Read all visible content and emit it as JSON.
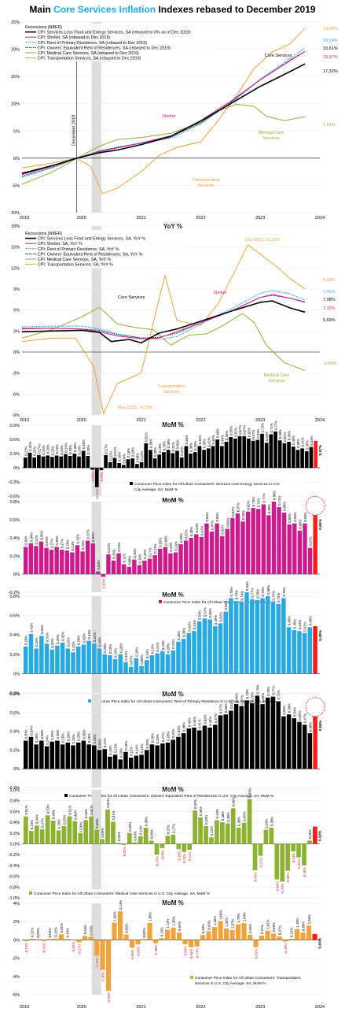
{
  "title": {
    "pre": "Main ",
    "highlight": "Core Services Inflation",
    "post": " Indexes rebased to December 2019"
  },
  "colors": {
    "core": "#000000",
    "shelter": "#cc1b8e",
    "rent": "#29a9e1",
    "oer": "#1f2a44",
    "medical": "#8db132",
    "transport": "#f0a23b",
    "last_bar": "#ff1a1a",
    "recession": "#dddddd",
    "neg_label": "#d11f1f"
  },
  "x_axis": {
    "years": [
      "2019",
      "2020",
      "2021",
      "2022",
      "2023",
      "2024"
    ]
  },
  "chart_data": [
    {
      "type": "line",
      "title": "",
      "ylabel": "",
      "ylim": [
        -10,
        25
      ],
      "yticks": [
        "25%",
        "20%",
        "15%",
        "10%",
        "5%",
        "0%",
        "-5%",
        "-10%"
      ],
      "annotation_vline": "December 2019",
      "legend": [
        "Recessions (NBER)",
        "CPI: Services Less Food and Energy Services, SA (rebased to 0% as of Dec 2019)",
        "CPI: Shelter, SA (rebased to Dec 2019)",
        "CPI: Rent of Primary Residence, SA (rebased to Dec 2019)",
        "CPI: Owners' Equivalent Rent of Residences, SA (rebased to Dec 2019)",
        "CPI: Medical Care Services, SA (rebased to Dec 2019)",
        "CPI: Transportation Services, SA (rebased to Dec 2019)"
      ],
      "end_labels": [
        "23,88%",
        "20,24%",
        "19,61%",
        "19,57%",
        "17,32%",
        "7,61%"
      ],
      "series_labels": [
        "Core Services",
        "Shelter",
        "Medical Care Services",
        "Transportation Services"
      ],
      "series": [
        {
          "key": "core",
          "x": [
            2019.0,
            2019.5,
            2019.92,
            2020.3,
            2020.6,
            2021.0,
            2021.5,
            2022.0,
            2022.5,
            2023.0,
            2023.5,
            2023.75
          ],
          "values": [
            -2.8,
            -1.4,
            0,
            1.0,
            1.5,
            2.5,
            4.0,
            6.8,
            10.0,
            13.2,
            15.9,
            17.32
          ]
        },
        {
          "key": "shelter",
          "x": [
            2019.0,
            2019.5,
            2019.92,
            2020.3,
            2020.6,
            2021.0,
            2021.5,
            2022.0,
            2022.5,
            2023.0,
            2023.5,
            2023.75
          ],
          "values": [
            -3.0,
            -1.5,
            0,
            1.2,
            1.9,
            2.8,
            4.1,
            6.9,
            10.4,
            14.4,
            17.9,
            19.57
          ]
        },
        {
          "key": "rent",
          "x": [
            2019.0,
            2019.5,
            2019.92,
            2020.3,
            2020.6,
            2021.0,
            2021.5,
            2022.0,
            2022.5,
            2023.0,
            2023.5,
            2023.75
          ],
          "values": [
            -3.5,
            -1.8,
            0,
            1.3,
            2.0,
            2.7,
            3.7,
            6.3,
            10.1,
            14.5,
            18.3,
            20.24
          ]
        },
        {
          "key": "oer",
          "x": [
            2019.0,
            2019.5,
            2019.92,
            2020.3,
            2020.6,
            2021.0,
            2021.5,
            2022.0,
            2022.5,
            2023.0,
            2023.5,
            2023.75
          ],
          "values": [
            -3.3,
            -1.7,
            0,
            1.3,
            2.0,
            2.8,
            3.9,
            6.5,
            10.2,
            14.4,
            18.0,
            19.61
          ]
        },
        {
          "key": "medical",
          "x": [
            2019.0,
            2019.5,
            2019.92,
            2020.3,
            2020.6,
            2021.0,
            2021.5,
            2022.0,
            2022.3,
            2022.6,
            2022.9,
            2023.1,
            2023.4,
            2023.75
          ],
          "values": [
            -4.8,
            -2.6,
            0,
            2.2,
            3.4,
            3.8,
            4.6,
            6.5,
            8.7,
            9.9,
            9.5,
            7.7,
            6.9,
            7.61
          ]
        },
        {
          "key": "transport",
          "x": [
            2019.0,
            2019.5,
            2019.92,
            2020.15,
            2020.35,
            2020.6,
            2021.0,
            2021.3,
            2021.6,
            2022.0,
            2022.3,
            2022.6,
            2022.9,
            2023.2,
            2023.5,
            2023.75
          ],
          "values": [
            -1.8,
            -0.9,
            0,
            -1.5,
            -6.5,
            -5.5,
            -2.5,
            0.5,
            2.0,
            3.0,
            7.0,
            11.5,
            16.5,
            19.5,
            21.0,
            23.88
          ]
        }
      ]
    },
    {
      "type": "line",
      "title": "YoY %",
      "ylim": [
        -9,
        18
      ],
      "yticks": [
        "18%",
        "15%",
        "12%",
        "9%",
        "6%",
        "3%",
        "0%",
        "-3%",
        "-6%",
        "-9%"
      ],
      "legend": [
        "Recessions (NBER)",
        "CPI: Services Less Food and Energy Services, SA, YoY %",
        "CPI: Shelter, SA, YoY %",
        "CPI: Rent of Primary Residence, SA, YoY %",
        "CPI: Owners' Equivalent Rent of Residences, SA, YoY %",
        "CPI: Medical Care Services, SA, YoY %",
        "CPI: Transportation Services, SA, YoY %"
      ],
      "annotations": [
        "Oct-2022, 15,32%",
        "May-2020, -8,76%"
      ],
      "end_labels": [
        "9,03%",
        "7,41%",
        "7,08%",
        "7,15%",
        "5,69%",
        "-2,64%"
      ],
      "series_labels": [
        "Core Services",
        "Shelter",
        "Transportation Services",
        "Medical Care Services"
      ],
      "series": [
        {
          "key": "core",
          "x": [
            2019.0,
            2019.5,
            2020.0,
            2020.3,
            2020.5,
            2020.8,
            2021.0,
            2021.3,
            2021.6,
            2022.0,
            2022.5,
            2023.0,
            2023.2,
            2023.5,
            2023.75
          ],
          "values": [
            2.9,
            3.0,
            3.1,
            2.8,
            1.5,
            1.8,
            1.3,
            2.7,
            3.3,
            4.4,
            5.8,
            7.1,
            7.3,
            6.3,
            5.69
          ]
        },
        {
          "key": "shelter",
          "x": [
            2019.0,
            2019.5,
            2020.0,
            2020.3,
            2020.6,
            2021.0,
            2021.3,
            2021.6,
            2022.0,
            2022.5,
            2023.0,
            2023.2,
            2023.5,
            2023.75
          ],
          "values": [
            3.3,
            3.4,
            3.3,
            2.9,
            2.3,
            1.9,
            2.0,
            2.9,
            4.2,
            5.8,
            7.8,
            8.2,
            7.7,
            7.15
          ]
        },
        {
          "key": "rent",
          "x": [
            2019.0,
            2019.5,
            2020.0,
            2020.3,
            2020.6,
            2021.0,
            2021.3,
            2021.6,
            2022.0,
            2022.5,
            2023.0,
            2023.2,
            2023.5,
            2023.75
          ],
          "values": [
            3.6,
            3.7,
            3.7,
            3.3,
            2.6,
            2.0,
            1.8,
            2.2,
            4.0,
            6.1,
            8.4,
            8.8,
            8.3,
            7.41
          ]
        },
        {
          "key": "oer",
          "x": [
            2019.0,
            2019.5,
            2020.0,
            2020.3,
            2020.6,
            2021.0,
            2021.3,
            2021.6,
            2022.0,
            2022.5,
            2023.0,
            2023.2,
            2023.5,
            2023.75
          ],
          "values": [
            3.4,
            3.4,
            3.3,
            3.1,
            2.5,
            2.0,
            2.1,
            2.7,
            4.2,
            5.8,
            7.8,
            8.1,
            7.7,
            7.08
          ]
        },
        {
          "key": "medical",
          "x": [
            2019.0,
            2019.5,
            2020.0,
            2020.3,
            2020.6,
            2020.9,
            2021.2,
            2021.5,
            2021.8,
            2022.1,
            2022.4,
            2022.7,
            2022.9,
            2023.1,
            2023.4,
            2023.75
          ],
          "values": [
            2.0,
            3.2,
            5.0,
            6.4,
            4.0,
            3.5,
            3.2,
            1.0,
            2.4,
            2.6,
            3.9,
            5.5,
            4.2,
            1.0,
            -1.5,
            -2.64
          ]
        },
        {
          "key": "transport",
          "x": [
            2019.0,
            2019.5,
            2019.9,
            2020.2,
            2020.37,
            2020.6,
            2021.0,
            2021.2,
            2021.4,
            2021.6,
            2022.0,
            2022.3,
            2022.6,
            2022.79,
            2023.0,
            2023.3,
            2023.5,
            2023.75
          ],
          "values": [
            1.5,
            2.0,
            2.0,
            -2.0,
            -8.76,
            -4.5,
            -3.0,
            4.0,
            11.0,
            4.5,
            3.8,
            7.0,
            12.0,
            15.32,
            14.0,
            12.0,
            10.5,
            9.03
          ]
        }
      ]
    },
    {
      "type": "bar",
      "title": "MoM %",
      "ylim": [
        -0.6,
        0.9
      ],
      "yticks": [
        "0.9%",
        "0.6%",
        "0.3%",
        "0%",
        "-0.3%",
        "-0.6%"
      ],
      "legend": "Consumer Price Index for All Urban Consumers: Services Less Energy Services in U.S. City Average, SA, MoM %",
      "last_label": "0,57%",
      "values": [
        0.22,
        0.32,
        0.22,
        0.27,
        0.24,
        0.26,
        0.23,
        0.26,
        0.24,
        0.29,
        0.25,
        0.3,
        0.24,
        0.36,
        0.25,
        -0.04,
        -0.41,
        -0.05,
        0.27,
        0.12,
        0.21,
        0.1,
        0.06,
        0.18,
        0.2,
        0.08,
        0.12,
        0.52,
        0.38,
        0.2,
        0.28,
        0.33,
        0.38,
        0.31,
        0.36,
        0.22,
        0.46,
        0.3,
        0.33,
        0.46,
        0.38,
        0.41,
        0.46,
        0.6,
        0.46,
        0.55,
        0.65,
        0.62,
        0.67,
        0.67,
        0.62,
        0.57,
        0.59,
        0.72,
        0.53,
        0.71,
        0.77,
        0.58,
        0.52,
        0.55,
        0.45,
        0.38,
        0.41,
        0.35,
        0.44,
        0.57
      ]
    },
    {
      "type": "bar",
      "title": "MoM %",
      "ylim": [
        -0.2,
        0.8
      ],
      "yticks": [
        "0.8%",
        "0.6%",
        "0.4%",
        "0.2%",
        "0%",
        "-0.2%"
      ],
      "legend": "Consumer Price Index for All Urban Consumers: Shelter, MoM in %",
      "last_label": "0,65%",
      "values": [
        0.3,
        0.34,
        0.31,
        0.36,
        0.29,
        0.27,
        0.3,
        0.27,
        0.26,
        0.24,
        0.32,
        0.25,
        0.37,
        0.34,
        0.03,
        -0.03,
        0.22,
        0.15,
        0.23,
        0.11,
        0.08,
        0.16,
        0.1,
        0.15,
        0.17,
        0.21,
        0.28,
        0.3,
        0.23,
        0.24,
        0.33,
        0.37,
        0.4,
        0.44,
        0.41,
        0.56,
        0.47,
        0.56,
        0.42,
        0.5,
        0.62,
        0.67,
        0.58,
        0.69,
        0.73,
        0.72,
        0.77,
        0.65,
        0.8,
        0.74,
        0.68,
        0.55,
        0.56,
        0.48,
        0.56,
        0.29,
        0.65
      ]
    },
    {
      "type": "bar",
      "title": "MoM %",
      "ylim": [
        -0.2,
        0.8
      ],
      "yticks": [
        "0.8%",
        "0.6%",
        "0.4%",
        "0.2%",
        "0%",
        "-0.2%"
      ],
      "legend": "Consumer Price Index for All Urban Consumers: Rent of Primary Residence in U.S. City Average, SA, MoM %",
      "last_label": "0,49%",
      "values": [
        0.28,
        0.41,
        0.26,
        0.39,
        0.31,
        0.25,
        0.29,
        0.32,
        0.26,
        0.22,
        0.28,
        0.3,
        0.34,
        0.31,
        0.26,
        0.2,
        0.19,
        0.15,
        0.2,
        0.12,
        0.07,
        0.16,
        0.08,
        0.14,
        0.19,
        0.21,
        0.23,
        0.2,
        0.24,
        0.33,
        0.36,
        0.42,
        0.44,
        0.54,
        0.57,
        0.56,
        0.49,
        0.52,
        0.64,
        0.78,
        0.75,
        0.74,
        0.84,
        0.77,
        0.76,
        0.78,
        0.8,
        0.74,
        0.72,
        0.78,
        0.48,
        0.45,
        0.44,
        0.42,
        0.48,
        0.49
      ]
    },
    {
      "type": "bar",
      "title": "MoM %",
      "ylim": [
        -0.2,
        0.8
      ],
      "yticks": [
        "0.8%",
        "0.6%",
        "0.4%",
        "0.2%",
        "0%",
        "-0.2%"
      ],
      "legend": "Consumer Price Index for All Urban Consumers: Owners' Equivalent Rent of Residences in U.S. City Average, SA, MoM %",
      "last_label": "0,56%",
      "values": [
        0.3,
        0.34,
        0.26,
        0.3,
        0.24,
        0.29,
        0.3,
        0.26,
        0.28,
        0.25,
        0.28,
        0.3,
        0.26,
        0.25,
        0.2,
        0.21,
        0.13,
        0.15,
        0.1,
        0.18,
        0.12,
        0.14,
        0.15,
        0.2,
        0.26,
        0.25,
        0.27,
        0.28,
        0.31,
        0.34,
        0.38,
        0.43,
        0.44,
        0.41,
        0.46,
        0.44,
        0.47,
        0.57,
        0.58,
        0.62,
        0.69,
        0.67,
        0.73,
        0.7,
        0.78,
        0.69,
        0.76,
        0.77,
        0.72,
        0.56,
        0.58,
        0.54,
        0.5,
        0.47,
        0.38,
        0.56
      ]
    },
    {
      "type": "bar",
      "title": "MoM %",
      "ylim": [
        -1.0,
        1.0
      ],
      "yticks": [
        "1.0%",
        "0.8%",
        "0.6%",
        "0.4%",
        "0.2%",
        "0.0%",
        "-0.2%",
        "-0.4%",
        "-0.6%",
        "-0.8%",
        "-1.0%"
      ],
      "legend": "Consumer Price Index for All Urban Consumers: Medical Care Services in U.S. City Average, SA, MoM %",
      "last_label": "0,32%",
      "values": [
        0.51,
        0.24,
        0.34,
        0.27,
        0.53,
        0.43,
        0.25,
        0.33,
        0.51,
        0.42,
        0.2,
        0.44,
        0.51,
        0.26,
        0.09,
        0.64,
        0.41,
        0.02,
        -0.02,
        0.2,
        0.03,
        0.14,
        0.3,
        0.06,
        -0.2,
        -0.08,
        0.15,
        0.17,
        -0.1,
        -0.15,
        -0.11,
        0.62,
        0.49,
        0.33,
        0.12,
        0.44,
        0.4,
        0.38,
        0.66,
        0.3,
        0.39,
        0.83,
        -0.49,
        -0.22,
        0.26,
        0.3,
        -0.66,
        -0.7,
        -0.5,
        -0.14,
        -0.25,
        -0.4,
        0.06,
        0.32
      ]
    },
    {
      "type": "bar",
      "title": "MoM %",
      "ylim": [
        -6,
        4
      ],
      "yticks": [
        "4%",
        "2%",
        "0%",
        "-2%",
        "-4%",
        "-6%"
      ],
      "legend": "Consumer Price Index for All Urban Consumers: Transportation Services in U.S. City Average, SA, MoM %",
      "last_label": "0,65%",
      "values": [
        -0.13,
        0.12,
        0.09,
        -0.13,
        0.09,
        0.15,
        0.61,
        0.1,
        -0.01,
        -0.27,
        0.44,
        0.33,
        -1.74,
        -3.3,
        -5.59,
        1.89,
        3.13,
        0.59,
        -0.86,
        -0.5,
        0.09,
        1.85,
        -0.38,
        0.19,
        1.11,
        1.35,
        0.81,
        -0.5,
        -0.81,
        -0.73,
        0.53,
        0.93,
        1.4,
        2.06,
        1.25,
        1.07,
        1.7,
        1.83,
        0.55,
        -0.81,
        0.47,
        1.01,
        0.69,
        0.37,
        -0.18,
        0.12,
        1.18,
        0.8,
        1.56,
        0.65
      ]
    }
  ]
}
